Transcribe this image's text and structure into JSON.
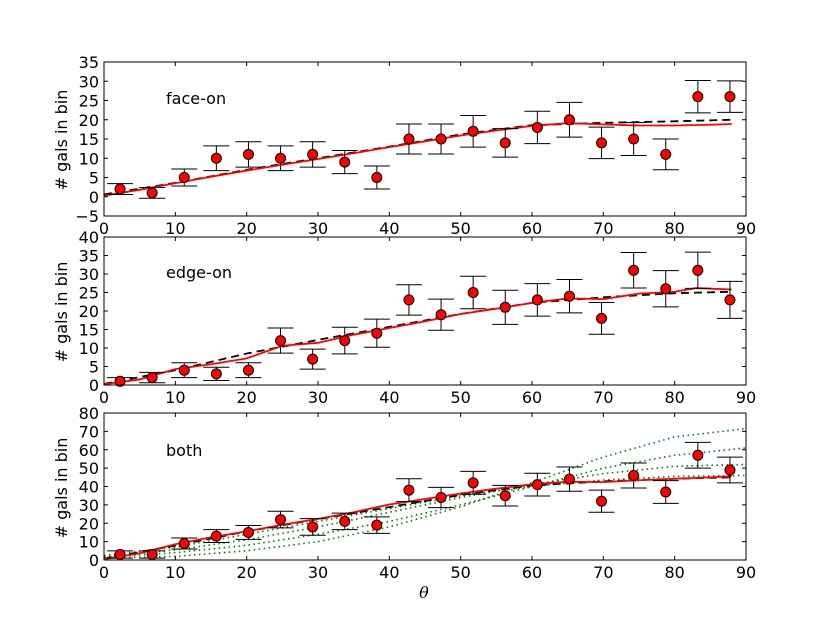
{
  "chart_data": [
    {
      "type": "scatter",
      "panel": "top",
      "annotation": "face-on",
      "ylabel": "# gals in bin",
      "xlabel": "",
      "xlim": [
        0,
        90
      ],
      "ylim": [
        -5,
        35
      ],
      "xticks": [
        0,
        10,
        20,
        30,
        40,
        50,
        60,
        70,
        80,
        90
      ],
      "yticks": [
        -5,
        0,
        5,
        10,
        15,
        20,
        25,
        30,
        35
      ],
      "points": {
        "x": [
          2.25,
          6.75,
          11.25,
          15.75,
          20.25,
          24.75,
          29.25,
          33.75,
          38.25,
          42.75,
          47.25,
          51.75,
          56.25,
          60.75,
          65.25,
          69.75,
          74.25,
          78.75,
          83.25,
          87.75
        ],
        "y": [
          2,
          1,
          5,
          10,
          11,
          10,
          11,
          9,
          5,
          15,
          15,
          17,
          14,
          18,
          20,
          14,
          15,
          11,
          26,
          26
        ],
        "err": [
          1.4,
          1.4,
          2.2,
          3.2,
          3.3,
          3.2,
          3.3,
          3.0,
          3.0,
          3.9,
          3.9,
          4.1,
          3.7,
          4.2,
          4.5,
          4.1,
          4.3,
          4.0,
          4.2,
          4.1
        ]
      },
      "red_line": {
        "x": [
          0,
          5,
          10,
          15,
          20,
          25,
          30,
          35,
          40,
          45,
          50,
          55,
          60,
          65,
          70,
          75,
          80,
          85,
          88
        ],
        "y": [
          0.3,
          1.8,
          3.5,
          5.2,
          6.8,
          8.3,
          9.8,
          11.3,
          12.9,
          14.4,
          15.9,
          17.2,
          18.4,
          19.1,
          18.8,
          18.5,
          18.5,
          18.7,
          18.9
        ]
      },
      "dashed_line": {
        "x": [
          0,
          10,
          20,
          30,
          40,
          50,
          60,
          70,
          80,
          88
        ],
        "y": [
          0.6,
          3.6,
          7.0,
          10.0,
          13.0,
          16.2,
          18.6,
          19.2,
          19.6,
          20.0
        ]
      }
    },
    {
      "type": "scatter",
      "panel": "middle",
      "annotation": "edge-on",
      "ylabel": "# gals in bin",
      "xlabel": "",
      "xlim": [
        0,
        90
      ],
      "ylim": [
        0,
        40
      ],
      "xticks": [
        0,
        10,
        20,
        30,
        40,
        50,
        60,
        70,
        80,
        90
      ],
      "yticks": [
        0,
        5,
        10,
        15,
        20,
        25,
        30,
        35,
        40
      ],
      "points": {
        "x": [
          2.25,
          6.75,
          11.25,
          15.75,
          20.25,
          24.75,
          29.25,
          33.75,
          38.25,
          42.75,
          47.25,
          51.75,
          56.25,
          60.75,
          65.25,
          69.75,
          74.25,
          78.75,
          83.25,
          87.75
        ],
        "y": [
          1,
          2,
          4,
          3,
          4,
          12,
          7,
          12,
          14,
          23,
          19,
          25,
          21,
          23,
          24,
          18,
          31,
          26,
          31,
          23
        ],
        "err": [
          1.0,
          1.4,
          2.0,
          1.8,
          2.0,
          3.4,
          2.7,
          3.6,
          3.8,
          4.1,
          4.2,
          4.4,
          4.6,
          4.4,
          4.5,
          4.3,
          4.8,
          4.9,
          4.9,
          5.0
        ]
      },
      "red_line": {
        "x": [
          0,
          5,
          10,
          15,
          20,
          25,
          30,
          35,
          40,
          45,
          50,
          55,
          60,
          65,
          70,
          75,
          80,
          83,
          88
        ],
        "y": [
          0.2,
          1.5,
          4.3,
          5.6,
          7.2,
          10.6,
          11.4,
          13.6,
          15.4,
          17.2,
          19.2,
          20.6,
          22.2,
          23.4,
          23.2,
          24.7,
          25.2,
          26.2,
          25.8
        ]
      },
      "dashed_line": {
        "x": [
          0,
          10,
          20,
          30,
          40,
          50,
          60,
          70,
          80,
          88
        ],
        "y": [
          0.3,
          4.0,
          8.5,
          12.2,
          15.7,
          19.2,
          22.2,
          23.7,
          24.8,
          25.2
        ]
      }
    },
    {
      "type": "scatter",
      "panel": "bottom",
      "annotation": "both",
      "ylabel": "# gals in bin",
      "xlabel": "θ",
      "xlim": [
        0,
        90
      ],
      "ylim": [
        0,
        80
      ],
      "xticks": [
        0,
        10,
        20,
        30,
        40,
        50,
        60,
        70,
        80,
        90
      ],
      "yticks": [
        0,
        10,
        20,
        30,
        40,
        50,
        60,
        70,
        80
      ],
      "points": {
        "x": [
          2.25,
          6.75,
          11.25,
          15.75,
          20.25,
          24.75,
          29.25,
          33.75,
          38.25,
          42.75,
          47.25,
          51.75,
          56.25,
          60.75,
          65.25,
          69.75,
          74.25,
          78.75,
          83.25,
          87.75
        ],
        "y": [
          3,
          3,
          9,
          13,
          15,
          22,
          18,
          21,
          19,
          38,
          34,
          42,
          35,
          41,
          44,
          32,
          46,
          37,
          57,
          49
        ],
        "err": [
          2.0,
          2.0,
          3.0,
          3.5,
          3.8,
          4.5,
          4.5,
          4.5,
          4.5,
          6.2,
          5.5,
          6.2,
          5.6,
          6.2,
          6.6,
          6.0,
          6.8,
          6.2,
          7.0,
          7.0
        ]
      },
      "red_line": {
        "x": [
          0,
          5,
          10,
          15,
          20,
          25,
          30,
          35,
          40,
          45,
          50,
          55,
          60,
          65,
          70,
          75,
          80,
          85,
          88
        ],
        "y": [
          0.5,
          3.6,
          8.6,
          12.4,
          15.6,
          19.2,
          22.4,
          26.0,
          30.2,
          33.2,
          36.2,
          38.8,
          41.2,
          42.6,
          42.4,
          43.4,
          44.2,
          45.0,
          45.6
        ]
      },
      "dashed_line": {
        "x": [
          0,
          10,
          20,
          30,
          40,
          50,
          60,
          70,
          80,
          88
        ],
        "y": [
          0.8,
          7.8,
          15.6,
          22.2,
          28.8,
          35.4,
          40.6,
          42.8,
          44.2,
          45.0
        ]
      },
      "model_curves": [
        {
          "x": [
            0,
            10,
            20,
            30,
            40,
            50,
            60,
            70,
            80,
            90
          ],
          "y": [
            1.0,
            2.0,
            5.0,
            10.0,
            18.0,
            29.0,
            42.0,
            56.0,
            67.0,
            71.5
          ]
        },
        {
          "x": [
            0,
            10,
            20,
            30,
            40,
            50,
            60,
            70,
            80,
            90
          ],
          "y": [
            1.5,
            4.0,
            8.0,
            14.0,
            21.0,
            30.0,
            40.0,
            50.0,
            57.0,
            61.0
          ]
        },
        {
          "x": [
            0,
            10,
            20,
            30,
            40,
            50,
            60,
            70,
            80,
            90
          ],
          "y": [
            2.0,
            5.5,
            11.0,
            18.0,
            26.0,
            34.0,
            41.0,
            47.0,
            51.0,
            52.0
          ]
        },
        {
          "x": [
            0,
            10,
            20,
            30,
            40,
            50,
            60,
            70,
            80,
            90
          ],
          "y": [
            2.5,
            7.0,
            14.0,
            21.0,
            28.0,
            35.0,
            40.0,
            43.5,
            45.5,
            46.0
          ]
        }
      ]
    }
  ],
  "colors": {
    "points": "#ff0000",
    "red_line": "#ff0000",
    "dashed_line": "#000000",
    "model_curves": "#008000",
    "errorbars": "#000000"
  }
}
